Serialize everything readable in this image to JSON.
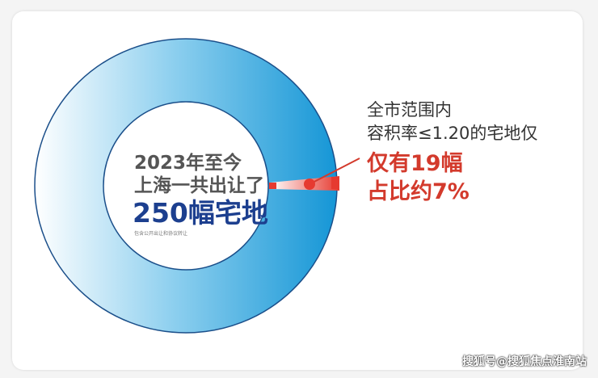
{
  "chart_data": {
    "type": "pie",
    "total": 250,
    "highlight_value": 19,
    "highlight_percent": 7,
    "colors": {
      "ring": "#1a9ad8",
      "ring_light": "#ffffff",
      "ring_border": "#1b4f8a",
      "highlight": "#d33a2c"
    }
  },
  "center": {
    "line1": "2023年至今",
    "line2": "上海一共出让了",
    "headline": "250幅宅地",
    "note": "包含公开出让和协议转让"
  },
  "callout": {
    "line1": "全市范围内",
    "line2": "容积率≤1.20的宅地仅",
    "line3": "仅有19幅",
    "line4": "占比约7%"
  },
  "watermark": "搜狐号@搜狐焦点淮南站"
}
